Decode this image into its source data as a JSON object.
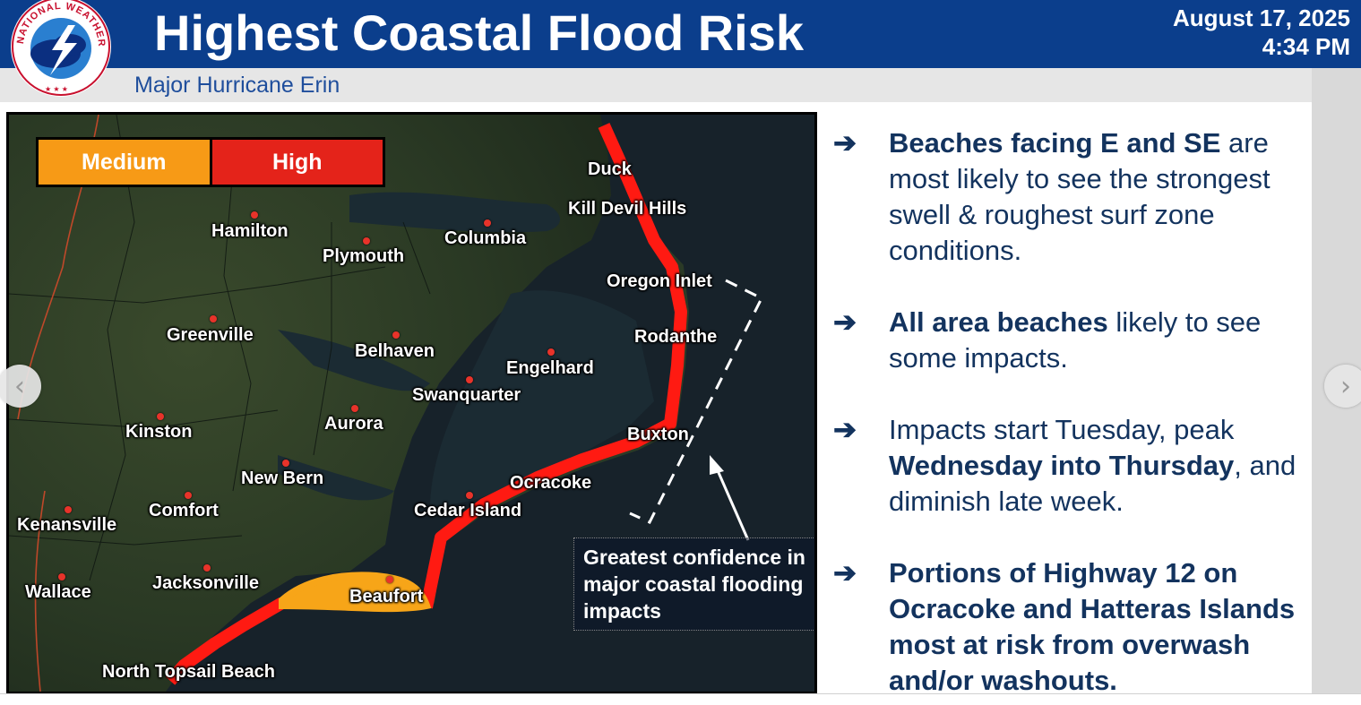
{
  "header": {
    "title": "Highest Coastal Flood Risk",
    "subtitle": "Major Hurricane Erin",
    "date": "August 17, 2025",
    "time": "4:34 PM",
    "logo_icon": "nws-logo-icon",
    "logo_text": "NATIONAL WEATHER SERVICE"
  },
  "colors": {
    "header_blue": "#0b3e8c",
    "risk_medium": "#f79a16",
    "risk_high": "#e4231a",
    "bullet_text": "#13335e"
  },
  "map": {
    "legend": {
      "medium": "Medium",
      "high": "High"
    },
    "towns": [
      "Duck",
      "Kill Devil Hills",
      "Hamilton",
      "Columbia",
      "Plymouth",
      "Oregon Inlet",
      "Greenville",
      "Rodanthe",
      "Belhaven",
      "Engelhard",
      "Swanquarter",
      "Aurora",
      "Kinston",
      "Buxton",
      "New Bern",
      "Ocracoke",
      "Comfort",
      "Cedar Island",
      "Kenansville",
      "Jacksonville",
      "Wallace",
      "Beaufort",
      "North Topsail Beach"
    ],
    "annotation": "Greatest confidence in major coastal flooding impacts"
  },
  "bullets": [
    {
      "bold": "Beaches facing E and SE",
      "rest": " are most likely to see the strongest swell & roughest surf zone conditions."
    },
    {
      "bold": "All area beaches",
      "rest": " likely to see some impacts."
    },
    {
      "pre": "Impacts start Tuesday, peak ",
      "bold": "Wednesday into Thursday",
      "rest": ", and diminish late week."
    },
    {
      "bold": "Portions of Highway 12 on Ocracoke and Hatteras Islands most at risk from overwash and/or washouts.",
      "rest": ""
    }
  ],
  "nav": {
    "prev_icon": "chevron-left-icon",
    "next_icon": "chevron-right-icon",
    "prev": "‹",
    "next": "›"
  }
}
